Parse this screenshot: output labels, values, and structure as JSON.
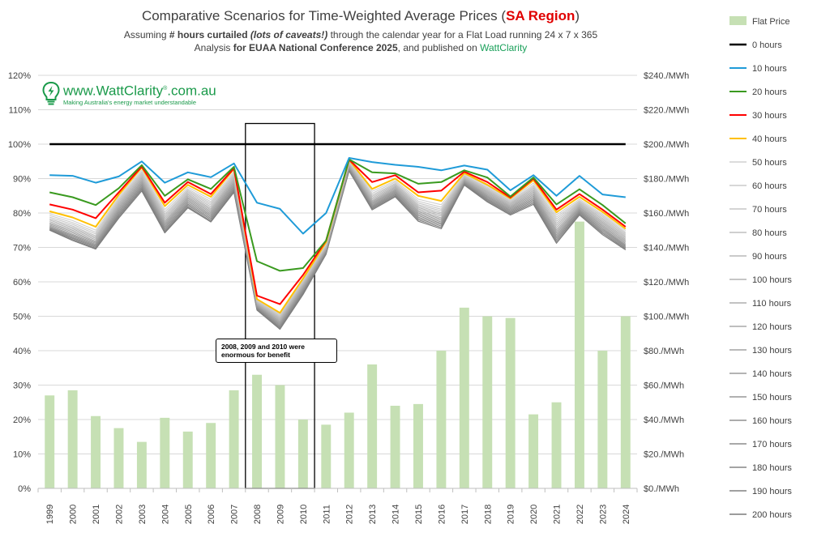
{
  "header": {
    "title_prefix": "Comparative Scenarios for Time-Weighted Average Prices (",
    "title_region": "SA Region",
    "title_suffix": ")",
    "sub1_a": "Assuming ",
    "sub1_b": "# hours curtailed",
    "sub1_c": " (lots of caveats!)",
    "sub1_d": " through the calendar year for a Flat Load running 24 x 7 x 365",
    "sub2_a": "Analysis ",
    "sub2_b": "for EUAA National Conference 2025",
    "sub2_c": ", and published on ",
    "sub2_d": "WattClarity"
  },
  "logo": {
    "main": "www.WattClarity",
    "reg": "®",
    "suffix": ".com.au",
    "tagline": "Making Australia's energy market understandable"
  },
  "annotation": {
    "text": "2008, 2009 and 2010 were enormous for benefit"
  },
  "colors": {
    "bar": "#c6e0b4",
    "h0": "#000000",
    "h10": "#1f9bd8",
    "h20": "#3a9a1f",
    "h30": "#ff0000",
    "h40": "#ffc000",
    "grey_light": "#d0d0d0",
    "grey_dark": "#7a7a7a",
    "grid": "#d9d9d9"
  },
  "chart_data": {
    "type": "bar+line",
    "categories": [
      "1999",
      "2000",
      "2001",
      "2002",
      "2003",
      "2004",
      "2005",
      "2006",
      "2007",
      "2008",
      "2009",
      "2010",
      "2011",
      "2012",
      "2013",
      "2014",
      "2015",
      "2016",
      "2017",
      "2018",
      "2019",
      "2020",
      "2021",
      "2022",
      "2023",
      "2024"
    ],
    "left_axis": {
      "ylim": [
        0,
        120
      ],
      "ticks": [
        "0%",
        "10%",
        "20%",
        "30%",
        "40%",
        "50%",
        "60%",
        "70%",
        "80%",
        "90%",
        "100%",
        "110%",
        "120%"
      ]
    },
    "right_axis": {
      "ylim": [
        0,
        240
      ],
      "ticks": [
        "$0./MWh",
        "$20./MWh",
        "$40./MWh",
        "$60./MWh",
        "$80./MWh",
        "$100./MWh",
        "$120./MWh",
        "$140./MWh",
        "$160./MWh",
        "$180./MWh",
        "$200./MWh",
        "$220./MWh",
        "$240./MWh"
      ]
    },
    "bar_series": {
      "name": "Flat Price",
      "values": [
        54,
        57,
        42,
        35,
        27,
        41,
        33,
        38,
        57,
        66,
        60,
        40,
        37,
        44,
        72,
        48,
        49,
        80,
        105,
        100,
        99,
        43,
        50,
        155,
        80,
        100
      ]
    },
    "line_series": [
      {
        "name": "0 hours",
        "values": [
          100,
          100,
          100,
          100,
          100,
          100,
          100,
          100,
          100,
          100,
          100,
          100,
          100,
          100,
          100,
          100,
          100,
          100,
          100,
          100,
          100,
          100,
          100,
          100,
          100,
          100
        ]
      },
      {
        "name": "10 hours",
        "values": [
          91,
          90.8,
          88.8,
          90.6,
          95,
          88.8,
          91.8,
          90.4,
          94.4,
          83,
          81.2,
          74,
          80,
          96,
          94.8,
          94,
          93.4,
          92.4,
          93.8,
          92.6,
          86.6,
          91,
          85,
          90.8,
          85.4,
          84.6
        ]
      },
      {
        "name": "20 hours",
        "values": [
          86,
          84.6,
          82.3,
          87.2,
          93.9,
          85,
          89.8,
          87,
          93.4,
          66,
          63.2,
          64,
          72,
          95.6,
          91.8,
          91.5,
          88.5,
          89,
          92.4,
          90.3,
          84.8,
          90.3,
          82.5,
          86.9,
          82.3,
          77
        ]
      },
      {
        "name": "30 hours",
        "values": [
          82.5,
          81,
          78.5,
          86,
          93.5,
          83,
          89,
          85.5,
          93,
          56,
          53.5,
          62,
          72,
          95.5,
          89,
          91,
          86,
          86.5,
          92,
          89,
          84.5,
          90,
          81,
          85.5,
          81,
          76
        ]
      },
      {
        "name": "40 hours",
        "values": [
          80.5,
          78.7,
          76,
          85.3,
          93.2,
          82,
          88.2,
          84.7,
          92.8,
          55,
          51,
          61,
          71.5,
          95.4,
          87,
          90,
          85,
          83.5,
          91.6,
          88.2,
          84.2,
          89.5,
          80.2,
          84.7,
          80.3,
          75.4
        ]
      },
      {
        "name": "50 hours",
        "values": [
          79.8,
          77.8,
          75,
          84.6,
          92.5,
          81,
          87.5,
          83.9,
          92,
          54.9,
          50.6,
          60.7,
          71.1,
          95.2,
          86.3,
          89.4,
          84,
          82.4,
          91.2,
          87.8,
          83.8,
          88.7,
          79.4,
          84,
          79.7,
          74.9
        ]
      },
      {
        "name": "60 hours",
        "values": [
          79.3,
          77.2,
          74.4,
          84.1,
          92,
          80.3,
          87,
          83.3,
          91.5,
          54.6,
          50.3,
          60.4,
          70.8,
          95,
          85.7,
          89,
          83.4,
          81.7,
          90.9,
          87.4,
          83.5,
          88.1,
          78.8,
          83.6,
          79.3,
          74.4
        ]
      },
      {
        "name": "70 hours",
        "values": [
          78.8,
          76.7,
          73.9,
          83.7,
          91.6,
          79.7,
          86.6,
          82.8,
          91.1,
          54.4,
          50,
          60.1,
          70.6,
          94.8,
          85.2,
          88.6,
          82.9,
          81.1,
          90.7,
          87.1,
          83.2,
          87.7,
          78.2,
          83.3,
          78.9,
          74
        ]
      },
      {
        "name": "80 hours",
        "values": [
          78.3,
          76.2,
          73.4,
          83.3,
          91.2,
          79.2,
          86.2,
          82.3,
          90.7,
          54.2,
          49.7,
          59.8,
          70.4,
          94.6,
          84.8,
          88.3,
          82.4,
          80.6,
          90.5,
          86.8,
          82.9,
          87.3,
          77.6,
          83,
          78.5,
          73.6
        ]
      },
      {
        "name": "90 hours",
        "values": [
          77.9,
          75.8,
          73,
          82.9,
          90.8,
          78.7,
          85.8,
          81.8,
          90.3,
          54,
          49.4,
          59.6,
          70.2,
          94.4,
          84.4,
          88,
          82,
          80.1,
          90.3,
          86.5,
          82.7,
          86.9,
          77,
          82.7,
          78.1,
          73.2
        ]
      },
      {
        "name": "100 hours",
        "values": [
          77.5,
          75.4,
          72.6,
          82.5,
          90.4,
          78.2,
          85.4,
          81.3,
          89.9,
          53.8,
          49.1,
          59.3,
          70,
          94.2,
          84,
          87.7,
          81.6,
          79.6,
          90.1,
          86.2,
          82.4,
          86.5,
          76.4,
          82.4,
          77.7,
          72.8
        ]
      },
      {
        "name": "110 hours",
        "values": [
          77.1,
          75,
          72.2,
          82.1,
          90,
          77.7,
          85,
          80.9,
          89.5,
          53.6,
          48.8,
          59,
          69.8,
          94,
          83.6,
          87.4,
          81.2,
          79.1,
          89.9,
          85.9,
          82.1,
          86.1,
          75.8,
          82.1,
          77.3,
          72.4
        ]
      },
      {
        "name": "120 hours",
        "values": [
          76.8,
          74.6,
          71.8,
          81.7,
          89.6,
          77.3,
          84.6,
          80.5,
          89.1,
          53.4,
          48.5,
          58.7,
          69.6,
          93.8,
          83.3,
          87.1,
          80.8,
          78.6,
          89.7,
          85.6,
          81.8,
          85.7,
          75.2,
          81.8,
          76.9,
          72
        ]
      },
      {
        "name": "130 hours",
        "values": [
          76.5,
          74.2,
          71.5,
          81.3,
          89.2,
          76.9,
          84.2,
          80.1,
          88.7,
          53.2,
          48.2,
          58.4,
          69.4,
          93.6,
          83,
          86.8,
          80.4,
          78.2,
          89.5,
          85.3,
          81.5,
          85.3,
          74.7,
          81.5,
          76.5,
          71.6
        ]
      },
      {
        "name": "140 hours",
        "values": [
          76.2,
          73.8,
          71.2,
          80.9,
          88.8,
          76.5,
          83.8,
          79.7,
          88.3,
          53,
          47.9,
          58.1,
          69.2,
          93.4,
          82.7,
          86.5,
          80,
          77.8,
          89.3,
          85,
          81.2,
          84.9,
          74.2,
          81.2,
          76.1,
          71.2
        ]
      },
      {
        "name": "150 hours",
        "values": [
          75.9,
          73.5,
          70.9,
          80.5,
          88.4,
          76.1,
          83.4,
          79.3,
          87.9,
          52.8,
          47.6,
          57.8,
          69,
          93.2,
          82.4,
          86.2,
          79.6,
          77.4,
          89.1,
          84.7,
          80.9,
          84.5,
          73.7,
          80.9,
          75.7,
          70.8
        ]
      },
      {
        "name": "160 hours",
        "values": [
          75.7,
          73.2,
          70.6,
          80.1,
          88,
          75.7,
          83,
          78.9,
          87.5,
          52.6,
          47.3,
          57.5,
          68.8,
          93,
          82.1,
          85.9,
          79.2,
          77,
          88.9,
          84.4,
          80.6,
          84.1,
          73.2,
          80.6,
          75.3,
          70.5
        ]
      },
      {
        "name": "170 hours",
        "values": [
          75.5,
          72.9,
          70.3,
          79.7,
          87.6,
          75.3,
          82.6,
          78.5,
          87.1,
          52.4,
          47,
          57.2,
          68.6,
          92.8,
          81.8,
          85.6,
          78.8,
          76.6,
          88.7,
          84.1,
          80.3,
          83.7,
          72.7,
          80.3,
          74.9,
          70.2
        ]
      },
      {
        "name": "180 hours",
        "values": [
          75.3,
          72.6,
          70,
          79.3,
          87.2,
          74.9,
          82.2,
          78.1,
          86.7,
          52.2,
          46.7,
          56.9,
          68.4,
          92.6,
          81.5,
          85.3,
          78.4,
          76.2,
          88.5,
          83.8,
          80,
          83.3,
          72.2,
          80,
          74.5,
          69.9
        ]
      },
      {
        "name": "190 hours",
        "values": [
          75.1,
          72.3,
          69.7,
          78.9,
          86.8,
          74.5,
          81.8,
          77.7,
          86.3,
          52,
          46.4,
          56.6,
          68.2,
          92.4,
          81.2,
          85,
          78,
          75.8,
          88.3,
          83.5,
          79.7,
          82.9,
          71.7,
          79.7,
          74.1,
          69.6
        ]
      },
      {
        "name": "200 hours",
        "values": [
          75,
          72,
          69.5,
          78.5,
          86.4,
          74.2,
          81.5,
          77.4,
          86,
          51.8,
          46.2,
          56.3,
          68,
          92.2,
          80.9,
          84.7,
          77.6,
          75.4,
          88.1,
          83.2,
          79.4,
          82.5,
          71.2,
          79.4,
          73.7,
          69.3
        ]
      }
    ],
    "legend_placement": "right",
    "grid": true
  }
}
